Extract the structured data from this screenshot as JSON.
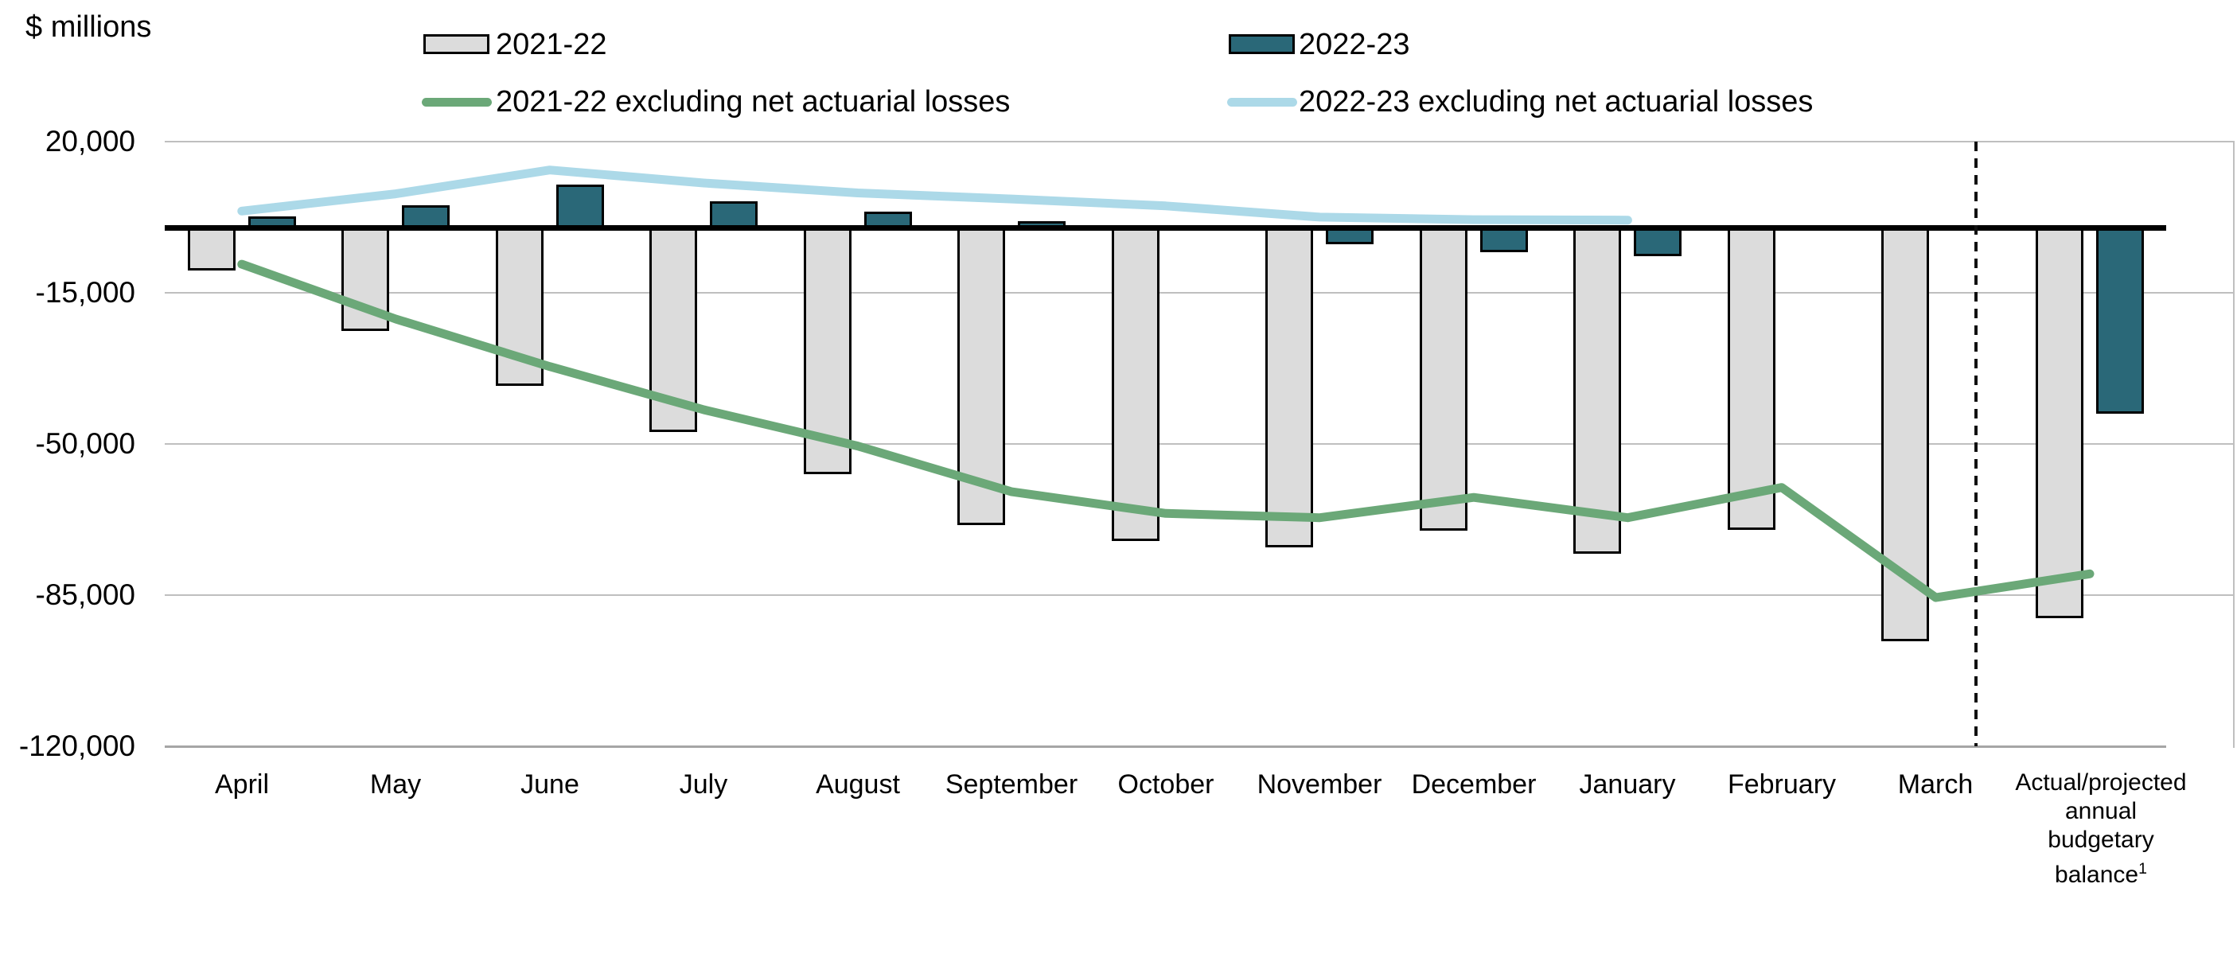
{
  "title": "$ millions",
  "legend": [
    {
      "label": "2021-22",
      "swatch": "bar",
      "color": "#dcdcdc"
    },
    {
      "label": "2022-23",
      "swatch": "bar",
      "color": "#2a6878"
    },
    {
      "label": "2021-22 excluding net actuarial losses",
      "swatch": "line",
      "color": "#6ba878"
    },
    {
      "label": "2022-23 excluding net actuarial losses",
      "swatch": "line",
      "color": "#acd9e8"
    }
  ],
  "y_axis": {
    "ticks": [
      {
        "label": "20,000",
        "value": 20000
      },
      {
        "label": "-15,000",
        "value": -15000
      },
      {
        "label": "-50,000",
        "value": -50000
      },
      {
        "label": "-85,000",
        "value": -85000
      },
      {
        "label": "-120,000",
        "value": -120000
      }
    ]
  },
  "x_axis": {
    "month_labels": [
      "April",
      "May",
      "June",
      "July",
      "August",
      "September",
      "October",
      "November",
      "December",
      "January",
      "February",
      "March"
    ],
    "annual_label_lines": [
      "Actual/projected",
      "annual",
      "budgetary",
      "balance¹"
    ]
  },
  "chart_data": {
    "type": "bar",
    "subtype": "combo-bar-line",
    "title": "$ millions",
    "categories": [
      "April",
      "May",
      "June",
      "July",
      "August",
      "September",
      "October",
      "November",
      "December",
      "January",
      "February",
      "March",
      "Actual/projected annual budgetary balance¹"
    ],
    "series": [
      {
        "name": "2021-22",
        "kind": "bar",
        "color": "#dcdcdc",
        "values": [
          -9700,
          -23800,
          -36500,
          -47200,
          -57000,
          -68700,
          -72400,
          -73800,
          -70000,
          -75400,
          -69800,
          -95600,
          -90200
        ]
      },
      {
        "name": "2022-23",
        "kind": "bar",
        "color": "#2a6878",
        "values": [
          2700,
          5300,
          10200,
          6200,
          3900,
          1700,
          0,
          -3600,
          -5600,
          -6400,
          null,
          null,
          -43000
        ]
      },
      {
        "name": "2021-22 excluding net actuarial losses",
        "kind": "line",
        "color": "#6ba878",
        "values": [
          -8300,
          -21000,
          -32000,
          -42000,
          -50400,
          -61000,
          -66000,
          -67000,
          -62300,
          -67000,
          -60000,
          -85500,
          -80000
        ]
      },
      {
        "name": "2022-23 excluding net actuarial losses",
        "kind": "line",
        "color": "#acd9e8",
        "values": [
          4000,
          8000,
          13500,
          10500,
          8200,
          6800,
          5200,
          2600,
          2000,
          1900,
          null,
          null,
          null
        ]
      }
    ],
    "ylim": [
      -120000,
      20000
    ],
    "yticks": [
      20000,
      -15000,
      -50000,
      -85000,
      -120000
    ],
    "grid": "horizontal",
    "legend_position": "top",
    "zero_line": true,
    "separator": {
      "type": "dashed-vertical",
      "between": [
        "March",
        "Actual/projected annual budgetary balance¹"
      ]
    }
  }
}
